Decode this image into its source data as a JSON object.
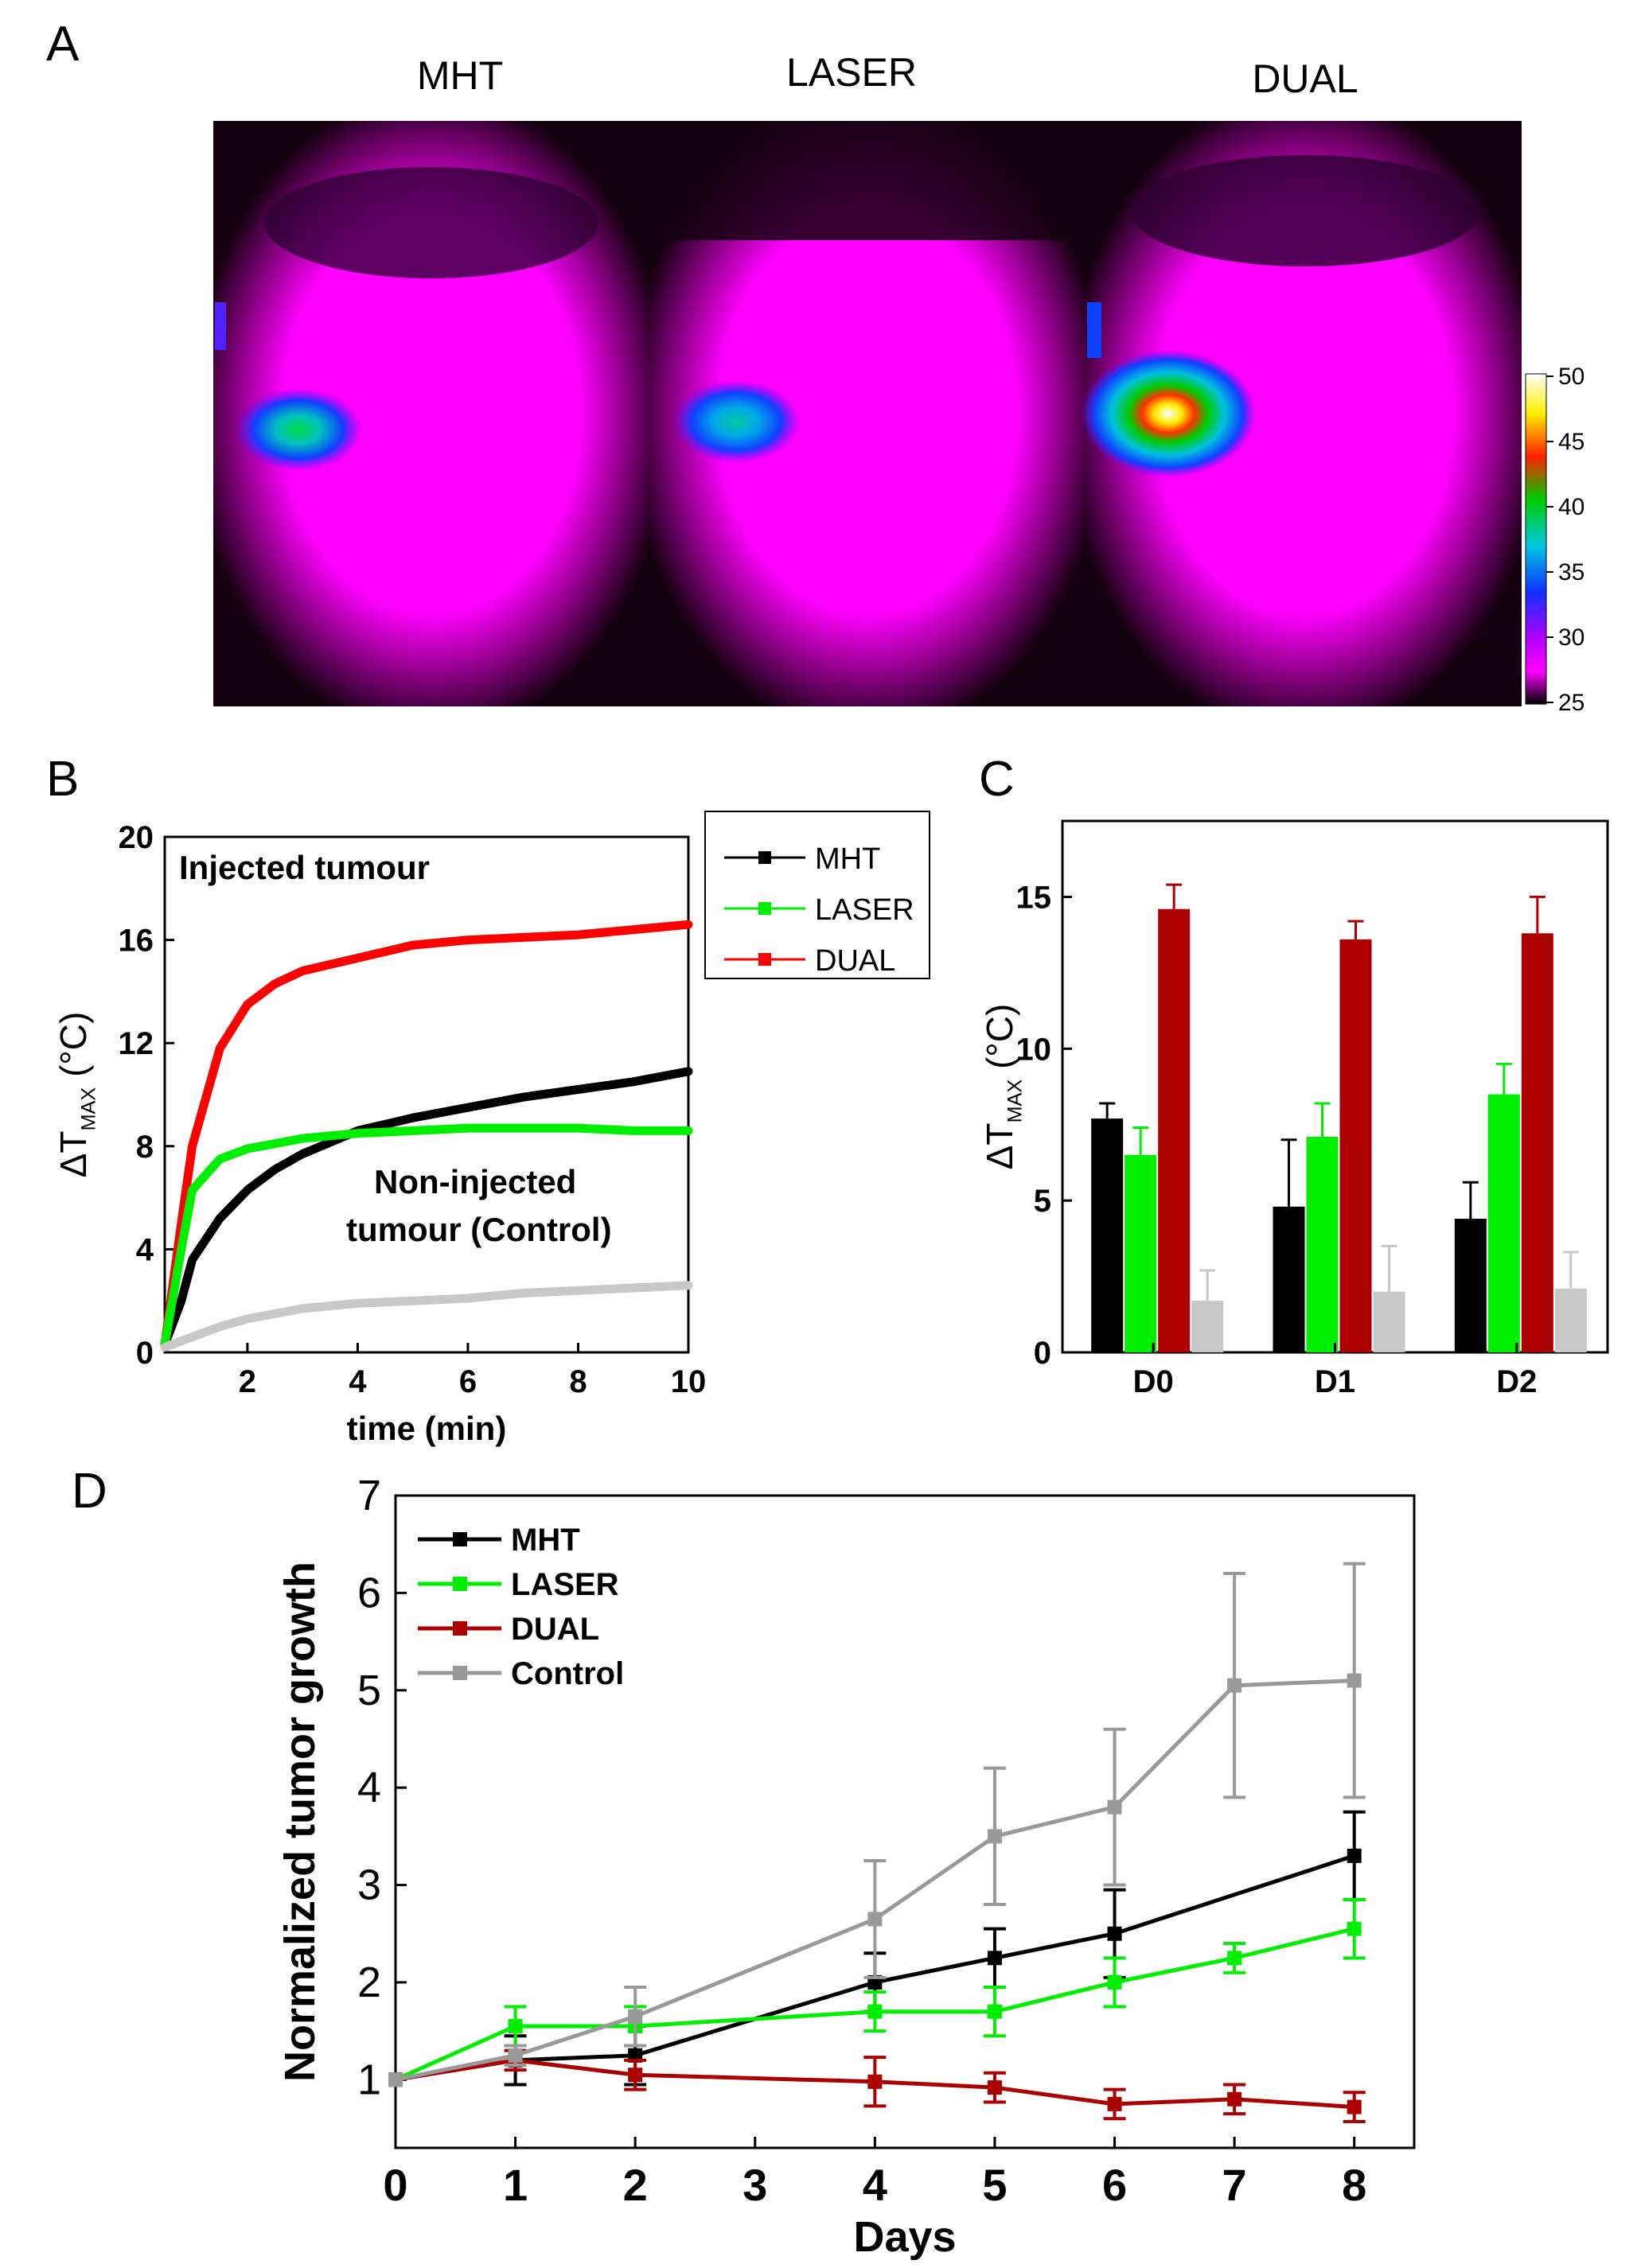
{
  "panel_letters": {
    "a": "A",
    "b": "B",
    "c": "C",
    "d": "D"
  },
  "panel_a": {
    "image_labels": [
      "MHT",
      "LASER",
      "DUAL"
    ],
    "colorbar_ticks": [
      "50",
      "45",
      "40",
      "35",
      "30",
      "25"
    ],
    "colors": {
      "background": "#ff00ff",
      "shadow": "#150010"
    }
  },
  "chart_data": [
    {
      "id": "B",
      "type": "line",
      "xlabel": "time (min)",
      "ylabel_main": "ΔT",
      "ylabel_sub": "MAX",
      "ylabel_unit": " (°C)",
      "xlim": [
        0.5,
        10
      ],
      "ylim": [
        0,
        20
      ],
      "xticks": [
        2,
        4,
        6,
        8,
        10
      ],
      "yticks": [
        0,
        4,
        8,
        12,
        16,
        20
      ],
      "annotations": [
        "Injected tumour",
        "Non-injected",
        "tumour (Control)"
      ],
      "legend": [
        "MHT",
        "LASER",
        "DUAL"
      ],
      "legend_placement": "outside-right",
      "series": [
        {
          "name": "DUAL",
          "color": "#ff0000",
          "x": [
            0.5,
            0.8,
            1.0,
            1.5,
            2.0,
            2.5,
            3.0,
            4.0,
            5.0,
            6.0,
            7.0,
            8.0,
            9.0,
            10.0
          ],
          "y": [
            0.3,
            5.0,
            8.0,
            11.8,
            13.5,
            14.3,
            14.8,
            15.3,
            15.8,
            16.0,
            16.1,
            16.2,
            16.4,
            16.6
          ]
        },
        {
          "name": "MHT",
          "color": "#000000",
          "x": [
            0.5,
            0.8,
            1.0,
            1.5,
            2.0,
            2.5,
            3.0,
            4.0,
            5.0,
            6.0,
            7.0,
            8.0,
            9.0,
            10.0
          ],
          "y": [
            0.3,
            2.0,
            3.6,
            5.2,
            6.3,
            7.1,
            7.7,
            8.6,
            9.1,
            9.5,
            9.9,
            10.2,
            10.5,
            10.9
          ]
        },
        {
          "name": "LASER",
          "color": "#00ee00",
          "x": [
            0.5,
            0.8,
            1.0,
            1.5,
            2.0,
            2.5,
            3.0,
            4.0,
            5.0,
            6.0,
            7.0,
            8.0,
            9.0,
            10.0
          ],
          "y": [
            0.3,
            4.0,
            6.3,
            7.5,
            7.9,
            8.1,
            8.3,
            8.5,
            8.6,
            8.7,
            8.7,
            8.7,
            8.6,
            8.6
          ]
        },
        {
          "name": "Control",
          "color": "#c8c8c8",
          "x": [
            0.5,
            1.0,
            1.5,
            2.0,
            3.0,
            4.0,
            5.0,
            6.0,
            7.0,
            8.0,
            9.0,
            10.0
          ],
          "y": [
            0.2,
            0.6,
            1.0,
            1.3,
            1.7,
            1.9,
            2.0,
            2.1,
            2.3,
            2.4,
            2.5,
            2.6
          ]
        }
      ]
    },
    {
      "id": "C",
      "type": "bar",
      "categories": [
        "D0",
        "D1",
        "D2"
      ],
      "ylabel_main": "ΔT",
      "ylabel_sub": "MAX",
      "ylabel_unit": " (°C)",
      "ylim": [
        0,
        17.5
      ],
      "yticks": [
        0,
        5,
        10,
        15
      ],
      "series": [
        {
          "color": "#000000",
          "values": [
            7.7,
            4.8,
            4.4
          ],
          "errors": [
            0.5,
            2.2,
            1.2
          ]
        },
        {
          "color": "#00ee00",
          "values": [
            6.5,
            7.1,
            8.5
          ],
          "errors": [
            0.9,
            1.1,
            1.0
          ]
        },
        {
          "color": "#aa0000",
          "values": [
            14.6,
            13.6,
            13.8
          ],
          "errors": [
            0.8,
            0.6,
            1.2
          ]
        },
        {
          "color": "#c8c8c8",
          "values": [
            1.7,
            2.0,
            2.1
          ],
          "errors": [
            1.0,
            1.5,
            1.2
          ]
        }
      ]
    },
    {
      "id": "D",
      "type": "line",
      "xlabel": "Days",
      "ylabel": "Normalized tumor growth",
      "xlim": [
        0,
        8.5
      ],
      "ylim": [
        0.3,
        7
      ],
      "xticks": [
        0,
        1,
        2,
        3,
        4,
        5,
        6,
        7,
        8
      ],
      "yticks": [
        1,
        2,
        3,
        4,
        5,
        6,
        7
      ],
      "legend_placement": "top-left",
      "series": [
        {
          "name": "MHT",
          "color": "#000000",
          "x": [
            0,
            1,
            2,
            4,
            5,
            6,
            8
          ],
          "y": [
            1.0,
            1.2,
            1.25,
            2.0,
            2.25,
            2.5,
            3.3
          ],
          "err": [
            0,
            0.25,
            0.3,
            0.3,
            0.3,
            0.45,
            0.45
          ]
        },
        {
          "name": "LASER",
          "color": "#00ee00",
          "x": [
            0,
            1,
            2,
            4,
            5,
            6,
            7,
            8
          ],
          "y": [
            1.0,
            1.55,
            1.55,
            1.7,
            1.7,
            2.0,
            2.25,
            2.55
          ],
          "err": [
            0,
            0.2,
            0.2,
            0.2,
            0.25,
            0.25,
            0.15,
            0.3
          ]
        },
        {
          "name": "DUAL",
          "color": "#aa0000",
          "x": [
            0,
            1,
            2,
            4,
            5,
            6,
            7,
            8
          ],
          "y": [
            1.0,
            1.2,
            1.05,
            0.98,
            0.92,
            0.75,
            0.8,
            0.72
          ],
          "err": [
            0,
            0.1,
            0.15,
            0.25,
            0.15,
            0.15,
            0.15,
            0.15
          ]
        },
        {
          "name": "Control",
          "color": "#999999",
          "x": [
            0,
            1,
            2,
            4,
            5,
            6,
            7,
            8
          ],
          "y": [
            1.0,
            1.25,
            1.65,
            2.65,
            3.5,
            3.8,
            5.05,
            5.1
          ],
          "err": [
            0,
            0.1,
            0.3,
            0.6,
            0.7,
            0.8,
            1.15,
            1.2
          ]
        }
      ]
    }
  ]
}
